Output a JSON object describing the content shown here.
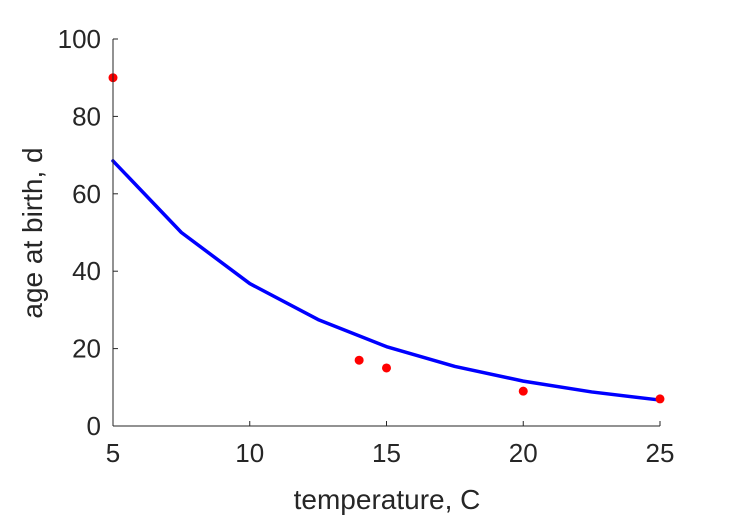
{
  "chart_data": {
    "type": "scatter",
    "title": "",
    "xlabel": "temperature, C",
    "ylabel": "age at birth, d",
    "xlim": [
      5,
      25
    ],
    "ylim": [
      0,
      100
    ],
    "xticks": [
      5,
      10,
      15,
      20,
      25
    ],
    "yticks": [
      0,
      20,
      40,
      60,
      80,
      100
    ],
    "grid": false,
    "legend": "none",
    "series": [
      {
        "kind": "points",
        "color": "#ff0000",
        "x": [
          5,
          14,
          15,
          20,
          25
        ],
        "y": [
          90,
          17,
          15,
          9,
          7
        ]
      },
      {
        "kind": "line",
        "color": "#0000ff",
        "x": [
          5,
          7.5,
          10,
          12.5,
          15,
          17.5,
          20,
          22.5,
          25
        ],
        "y": [
          68.5,
          50,
          36.8,
          27.5,
          20.5,
          15.4,
          11.6,
          8.8,
          6.7
        ]
      }
    ]
  }
}
